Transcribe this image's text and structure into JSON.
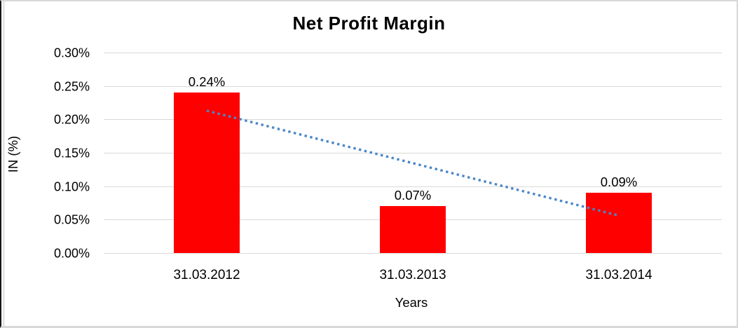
{
  "chart_data": {
    "type": "bar",
    "title": "Net Profit Margin",
    "categories": [
      "31.03.2012",
      "31.03.2013",
      "31.03.2014"
    ],
    "values": [
      0.24,
      0.07,
      0.09
    ],
    "data_labels": [
      "0.24%",
      "0.07%",
      "0.09%"
    ],
    "xlabel": "Years",
    "ylabel": "IN (%)",
    "ylim": [
      0,
      0.3
    ],
    "ytick_step": 0.05,
    "ytick_labels": [
      "0.30%",
      "0.25%",
      "0.20%",
      "0.15%",
      "0.10%",
      "0.05%",
      "0.00%"
    ],
    "grid": true,
    "legend": "none",
    "bar_color": "#ff0000",
    "gridline_color": "#d9d9d9",
    "trendline": {
      "type": "linear",
      "style": "dotted",
      "color": "#4a86c8",
      "start_value": 0.213,
      "end_value": 0.056
    }
  }
}
